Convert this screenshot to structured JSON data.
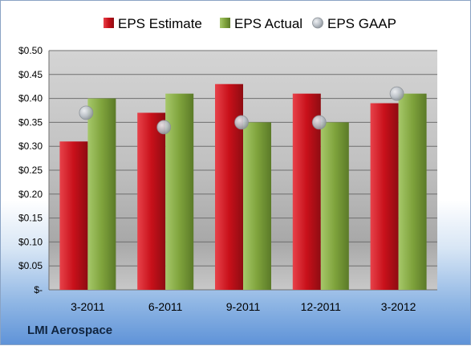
{
  "company_label": "LMI Aerospace",
  "chart_data": {
    "type": "bar",
    "categories": [
      "3-2011",
      "6-2011",
      "9-2011",
      "12-2011",
      "3-2012"
    ],
    "series": [
      {
        "name": "EPS Estimate",
        "type": "bar",
        "color": "#c0141c",
        "values": [
          0.31,
          0.37,
          0.43,
          0.41,
          0.39
        ]
      },
      {
        "name": "EPS Actual",
        "type": "bar",
        "color": "#7fa33c",
        "values": [
          0.4,
          0.41,
          0.35,
          0.35,
          0.41
        ]
      },
      {
        "name": "EPS GAAP",
        "type": "scatter",
        "color": "#b9bfc6",
        "values": [
          0.37,
          0.34,
          0.35,
          0.35,
          0.41
        ]
      }
    ],
    "ylim": [
      0,
      0.5
    ],
    "yticks": [
      0,
      0.05,
      0.1,
      0.15,
      0.2,
      0.25,
      0.3,
      0.35,
      0.4,
      0.45,
      0.5
    ],
    "ytick_labels": [
      "$-",
      "$0.05",
      "$0.10",
      "$0.15",
      "$0.20",
      "$0.25",
      "$0.30",
      "$0.35",
      "$0.40",
      "$0.45",
      "$0.50"
    ],
    "grid": true,
    "legend_position": "top"
  }
}
